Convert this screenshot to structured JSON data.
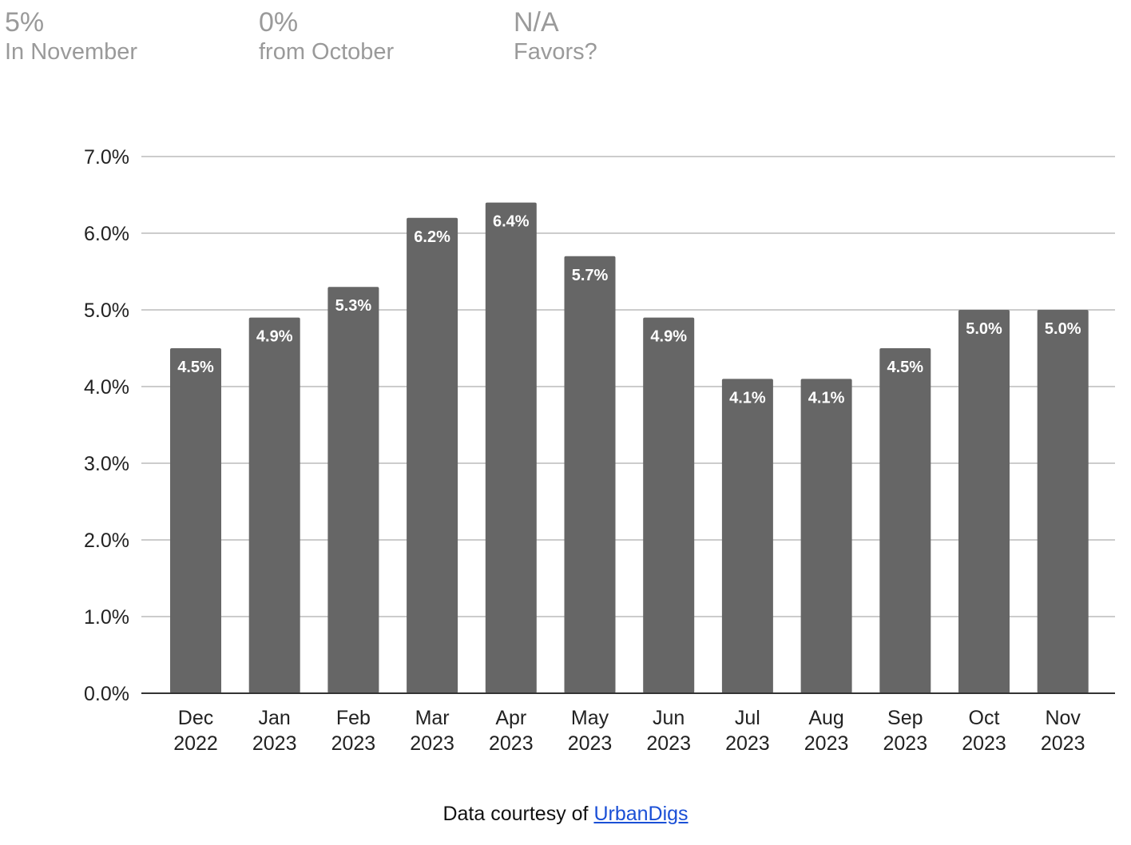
{
  "stats": [
    {
      "value": "5%",
      "label": "In November"
    },
    {
      "value": "0%",
      "label": "from October"
    },
    {
      "value": "N/A",
      "label": "Favors?"
    }
  ],
  "footer": {
    "prefix": "Data courtesy of ",
    "link_text": "UrbanDigs"
  },
  "colors": {
    "bar": "#666666",
    "grid": "#cccccc",
    "axis": "#333333",
    "bar_label": "#ffffff",
    "stat_text": "#9a9a9a",
    "link": "#1a4fd6"
  },
  "chart_data": {
    "type": "bar",
    "categories": [
      [
        "Dec",
        "2022"
      ],
      [
        "Jan",
        "2023"
      ],
      [
        "Feb",
        "2023"
      ],
      [
        "Mar",
        "2023"
      ],
      [
        "Apr",
        "2023"
      ],
      [
        "May",
        "2023"
      ],
      [
        "Jun",
        "2023"
      ],
      [
        "Jul",
        "2023"
      ],
      [
        "Aug",
        "2023"
      ],
      [
        "Sep",
        "2023"
      ],
      [
        "Oct",
        "2023"
      ],
      [
        "Nov",
        "2023"
      ]
    ],
    "values": [
      4.5,
      4.9,
      5.3,
      6.2,
      6.4,
      5.7,
      4.9,
      4.1,
      4.1,
      4.5,
      5.0,
      5.0
    ],
    "data_labels": [
      "4.5%",
      "4.9%",
      "5.3%",
      "6.2%",
      "6.4%",
      "5.7%",
      "4.9%",
      "4.1%",
      "4.1%",
      "4.5%",
      "5.0%",
      "5.0%"
    ],
    "yticks": [
      0,
      1,
      2,
      3,
      4,
      5,
      6,
      7
    ],
    "ytick_labels": [
      "0.0%",
      "1.0%",
      "2.0%",
      "3.0%",
      "4.0%",
      "5.0%",
      "6.0%",
      "7.0%"
    ],
    "ylim": [
      0,
      7
    ],
    "grid": true,
    "legend": "none",
    "title": "",
    "xlabel": "",
    "ylabel": ""
  }
}
